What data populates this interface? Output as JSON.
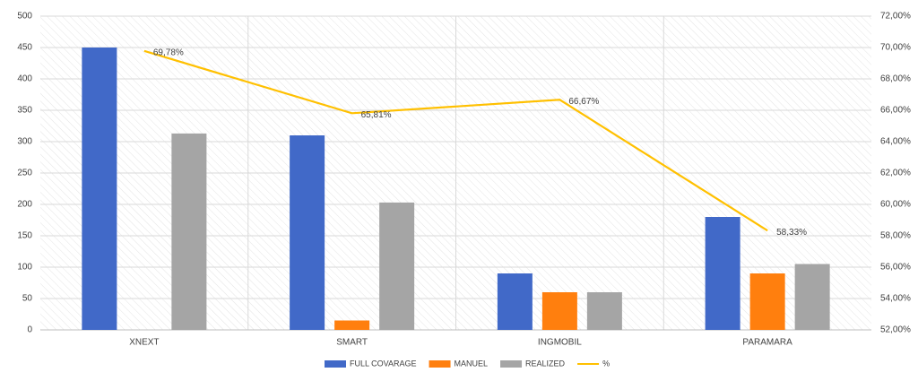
{
  "chart_data": {
    "type": "bar",
    "categories": [
      "XNEXT",
      "SMART",
      "INGMOBIL",
      "PARAMARA"
    ],
    "series": [
      {
        "name": "FULL COVARAGE",
        "color": "#4169c8",
        "values": [
          450,
          310,
          90,
          180
        ]
      },
      {
        "name": "MANUEL",
        "color": "#ff7f0e",
        "values": [
          0,
          15,
          60,
          90
        ]
      },
      {
        "name": "REALIZED",
        "color": "#a5a5a5",
        "values": [
          313,
          203,
          60,
          105
        ]
      },
      {
        "name": "%",
        "color": "#ffc000",
        "type": "line",
        "axis": "y2",
        "values": [
          69.78,
          65.81,
          66.67,
          58.33
        ],
        "value_labels": [
          "69,78%",
          "65,81%",
          "66,67%",
          "58,33%"
        ]
      }
    ],
    "ylim": [
      0,
      500
    ],
    "yticks": [
      0,
      50,
      100,
      150,
      200,
      250,
      300,
      350,
      400,
      450,
      500
    ],
    "y2lim": [
      52,
      72
    ],
    "y2ticks": [
      {
        "value": 52,
        "label": "52,00%"
      },
      {
        "value": 54,
        "label": "54,00%"
      },
      {
        "value": 56,
        "label": "56,00%"
      },
      {
        "value": 58,
        "label": "58,00%"
      },
      {
        "value": 60,
        "label": "60,00%"
      },
      {
        "value": 62,
        "label": "62,00%"
      },
      {
        "value": 64,
        "label": "64,00%"
      },
      {
        "value": 66,
        "label": "66,00%"
      },
      {
        "value": 68,
        "label": "68,00%"
      },
      {
        "value": 70,
        "label": "70,00%"
      },
      {
        "value": 72,
        "label": "72,00%"
      }
    ],
    "grid": true,
    "legend": "bottom"
  }
}
